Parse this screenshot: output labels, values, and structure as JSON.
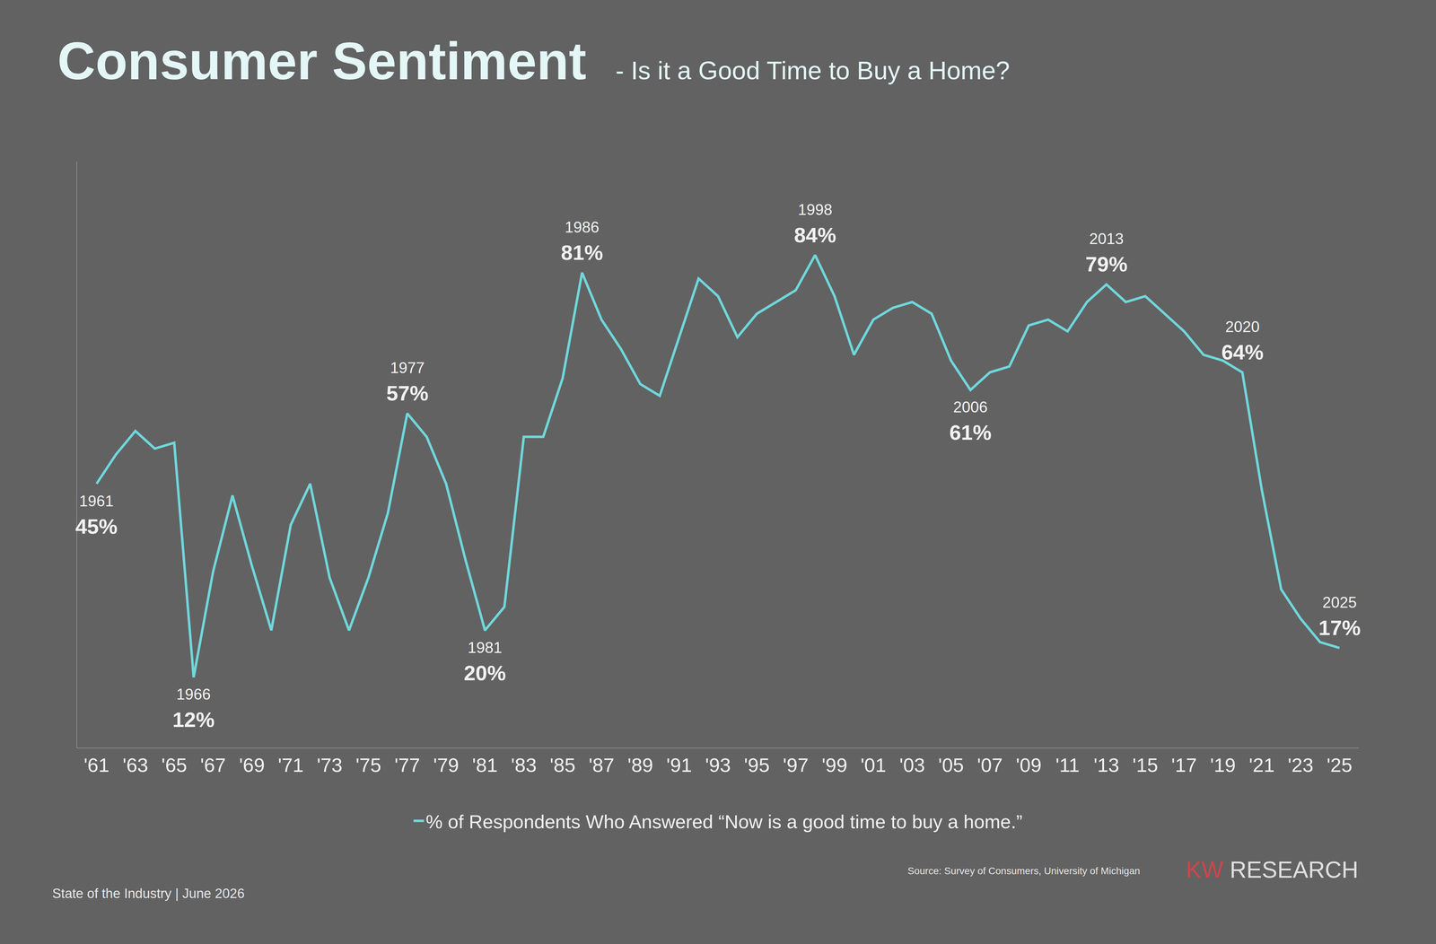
{
  "chart_data": {
    "type": "line",
    "title": "Consumer Sentiment",
    "subtitle": "- Is it a Good Time to Buy a Home?",
    "x": [
      1961,
      1962,
      1963,
      1964,
      1965,
      1966,
      1967,
      1968,
      1969,
      1970,
      1971,
      1972,
      1973,
      1974,
      1975,
      1976,
      1977,
      1978,
      1979,
      1980,
      1981,
      1982,
      1983,
      1984,
      1985,
      1986,
      1987,
      1988,
      1989,
      1990,
      1991,
      1992,
      1993,
      1994,
      1995,
      1996,
      1997,
      1998,
      1999,
      2000,
      2001,
      2002,
      2003,
      2004,
      2005,
      2006,
      2007,
      2008,
      2009,
      2010,
      2011,
      2012,
      2013,
      2014,
      2015,
      2016,
      2017,
      2018,
      2019,
      2020,
      2021,
      2022,
      2023,
      2024,
      2025
    ],
    "series": [
      {
        "name": "% of Respondents Who Answered “Now is a good time to buy a home.”",
        "color": "#6fd8dc",
        "values": [
          45,
          50,
          54,
          51,
          52,
          12,
          30,
          43,
          31,
          20,
          38,
          45,
          29,
          20,
          29,
          40,
          57,
          53,
          45,
          32,
          20,
          24,
          53,
          53,
          63,
          81,
          73,
          68,
          62,
          60,
          70,
          80,
          77,
          70,
          74,
          76,
          78,
          84,
          77,
          67,
          73,
          75,
          76,
          74,
          66,
          61,
          64,
          65,
          72,
          73,
          71,
          76,
          79,
          76,
          77,
          74,
          71,
          67,
          66,
          64,
          44,
          27,
          22,
          18,
          17
        ]
      }
    ],
    "xlim": [
      1960,
      2026
    ],
    "xticks": [
      {
        "value": 1961,
        "label": "'61"
      },
      {
        "value": 1963,
        "label": "'63"
      },
      {
        "value": 1965,
        "label": "'65"
      },
      {
        "value": 1967,
        "label": "'67"
      },
      {
        "value": 1969,
        "label": "'69"
      },
      {
        "value": 1971,
        "label": "'71"
      },
      {
        "value": 1973,
        "label": "'73"
      },
      {
        "value": 1975,
        "label": "'75"
      },
      {
        "value": 1977,
        "label": "'77"
      },
      {
        "value": 1979,
        "label": "'79"
      },
      {
        "value": 1981,
        "label": "'81"
      },
      {
        "value": 1983,
        "label": "'83"
      },
      {
        "value": 1985,
        "label": "'85"
      },
      {
        "value": 1987,
        "label": "'87"
      },
      {
        "value": 1989,
        "label": "'89"
      },
      {
        "value": 1991,
        "label": "'91"
      },
      {
        "value": 1993,
        "label": "'93"
      },
      {
        "value": 1995,
        "label": "'95"
      },
      {
        "value": 1997,
        "label": "'97"
      },
      {
        "value": 1999,
        "label": "'99"
      },
      {
        "value": 2001,
        "label": "'01"
      },
      {
        "value": 2003,
        "label": "'03"
      },
      {
        "value": 2005,
        "label": "'05"
      },
      {
        "value": 2007,
        "label": "'07"
      },
      {
        "value": 2009,
        "label": "'09"
      },
      {
        "value": 2011,
        "label": "'11"
      },
      {
        "value": 2013,
        "label": "'13"
      },
      {
        "value": 2015,
        "label": "'15"
      },
      {
        "value": 2017,
        "label": "'17"
      },
      {
        "value": 2019,
        "label": "'19"
      },
      {
        "value": 2021,
        "label": "'21"
      },
      {
        "value": 2023,
        "label": "'23"
      },
      {
        "value": 2025,
        "label": "'25"
      }
    ],
    "ylim": [
      0,
      100
    ],
    "tick_labels": "x",
    "grid": false,
    "legend": "bottom",
    "annotations": [
      {
        "x": 1961,
        "text": "1961",
        "label": "45%"
      },
      {
        "x": 1966,
        "text": "1966",
        "label": "12%"
      },
      {
        "x": 1977,
        "text": "1977",
        "label": "57%"
      },
      {
        "x": 1981,
        "text": "1981",
        "label": "20%"
      },
      {
        "x": 1986,
        "text": "1986",
        "label": "81%"
      },
      {
        "x": 1998,
        "text": "1998",
        "label": "84%"
      },
      {
        "x": 2006,
        "text": "2006",
        "label": "61%"
      },
      {
        "x": 2013,
        "text": "2013",
        "label": "79%"
      },
      {
        "x": 2020,
        "text": "2020",
        "label": "64%"
      },
      {
        "x": 2025,
        "text": "2025",
        "label": "17%"
      }
    ],
    "source": "Source: Survey of Consumers, University of Michigan",
    "brand": "KW RESEARCH",
    "footer": "State of the Industry | June 2026"
  }
}
